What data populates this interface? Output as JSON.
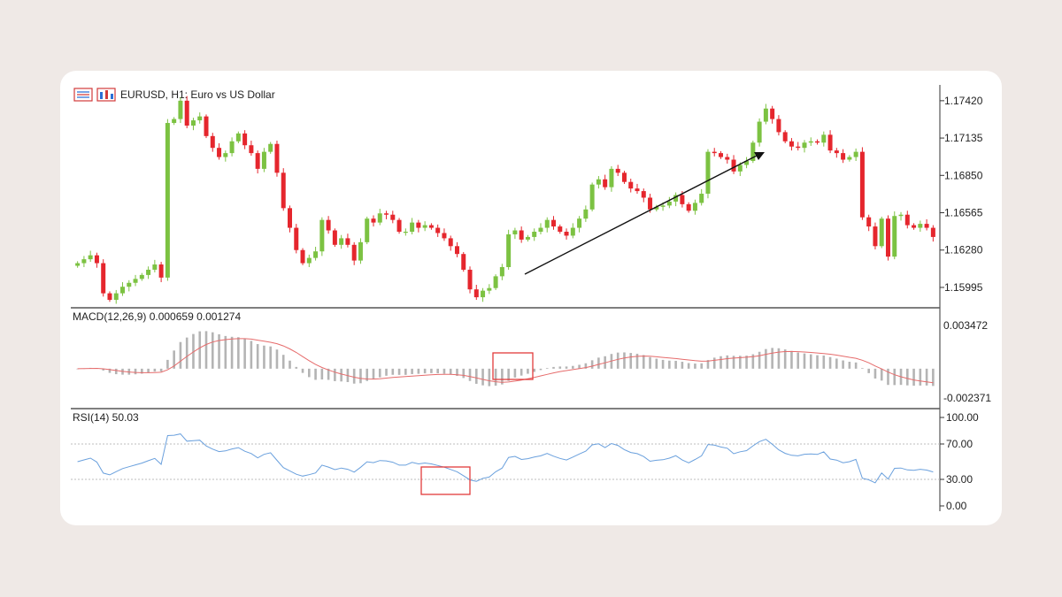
{
  "chart_data": [
    {
      "type": "candlestick",
      "title": "EURUSD, H1:  Euro vs US Dollar",
      "symbol": "EURUSD",
      "timeframe": "H1",
      "description": "Euro vs US Dollar",
      "y_ticks": [
        "1.17420",
        "1.17135",
        "1.16850",
        "1.16565",
        "1.16280",
        "1.15995"
      ],
      "ylim": [
        1.1588,
        1.175
      ],
      "up_color": "#7cc242",
      "down_color": "#e5262d",
      "arrow_color": "#111111",
      "close": [
        1.1618,
        1.1621,
        1.1624,
        1.1618,
        1.1595,
        1.159,
        1.1595,
        1.16,
        1.1603,
        1.1606,
        1.1609,
        1.1613,
        1.1617,
        1.1607,
        1.1725,
        1.1728,
        1.1742,
        1.1723,
        1.1727,
        1.173,
        1.1715,
        1.1706,
        1.1699,
        1.1702,
        1.1711,
        1.1717,
        1.1708,
        1.1702,
        1.169,
        1.1703,
        1.1709,
        1.1687,
        1.166,
        1.1645,
        1.1628,
        1.1618,
        1.1622,
        1.1627,
        1.1651,
        1.1643,
        1.1632,
        1.1637,
        1.1632,
        1.162,
        1.1634,
        1.1652,
        1.1649,
        1.1656,
        1.1655,
        1.1651,
        1.1642,
        1.1642,
        1.1649,
        1.1645,
        1.1647,
        1.1645,
        1.1641,
        1.1637,
        1.1631,
        1.1625,
        1.1613,
        1.1598,
        1.1592,
        1.1597,
        1.1599,
        1.1608,
        1.1615,
        1.164,
        1.1643,
        1.1636,
        1.1638,
        1.1642,
        1.1645,
        1.1651,
        1.1646,
        1.1642,
        1.1639,
        1.1645,
        1.1652,
        1.1659,
        1.1678,
        1.1682,
        1.1676,
        1.169,
        1.1687,
        1.168,
        1.1675,
        1.1673,
        1.1668,
        1.1659,
        1.1661,
        1.1662,
        1.1665,
        1.167,
        1.1663,
        1.1658,
        1.1664,
        1.1671,
        1.1703,
        1.1702,
        1.1699,
        1.1697,
        1.1688,
        1.1693,
        1.1696,
        1.171,
        1.1726,
        1.1736,
        1.1728,
        1.1718,
        1.1711,
        1.1707,
        1.1706,
        1.171,
        1.1711,
        1.171,
        1.1716,
        1.1704,
        1.1702,
        1.1697,
        1.1699,
        1.1703,
        1.1653,
        1.1646,
        1.1631,
        1.1652,
        1.1623,
        1.1654,
        1.1655,
        1.1647,
        1.1645,
        1.1648,
        1.1645,
        1.1638
      ]
    },
    {
      "type": "bar+line",
      "title": "MACD(12,26,9) 0.000659 0.001274",
      "y_ticks": [
        "0.003472",
        "-0.002371"
      ],
      "ylim": [
        -0.00265,
        0.0037
      ],
      "series": [
        {
          "name": "MACD",
          "color": "#b4b4b4"
        },
        {
          "name": "Signal",
          "color": "#e66b6b"
        }
      ]
    },
    {
      "type": "line",
      "title": "RSI(14) 50.03",
      "y_ticks": [
        "100.00",
        "70.00",
        "30.00",
        "0.00"
      ],
      "ylim": [
        0,
        100
      ],
      "levels": [
        70,
        30
      ],
      "series": [
        {
          "name": "RSI(14)",
          "color": "#6aa0dd"
        }
      ],
      "highlight_color": "#e23b3b"
    }
  ]
}
